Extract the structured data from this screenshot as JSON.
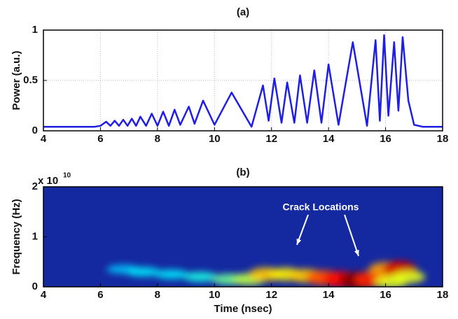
{
  "chart_data": [
    {
      "type": "line",
      "title": "(a)",
      "y_label": "Power (a.u.)",
      "xlim": [
        4,
        18
      ],
      "xticks": [
        4,
        6,
        8,
        10,
        12,
        14,
        16,
        18
      ],
      "ylim": [
        0,
        1
      ],
      "yticks": [
        0,
        0.5,
        1
      ],
      "grid": true,
      "color": "#1e1ee6",
      "x": [
        4,
        5.8,
        6.0,
        6.2,
        6.35,
        6.5,
        6.65,
        6.8,
        6.95,
        7.1,
        7.25,
        7.4,
        7.6,
        7.8,
        8.0,
        8.2,
        8.4,
        8.6,
        8.8,
        9.1,
        9.3,
        9.6,
        10.0,
        10.6,
        11.3,
        11.7,
        11.9,
        12.1,
        12.35,
        12.55,
        12.8,
        13.0,
        13.25,
        13.5,
        13.75,
        14.0,
        14.35,
        14.85,
        15.35,
        15.65,
        15.8,
        15.95,
        16.1,
        16.3,
        16.45,
        16.6,
        16.8,
        17.0,
        17.3,
        18
      ],
      "values": [
        0.04,
        0.04,
        0.05,
        0.09,
        0.05,
        0.1,
        0.05,
        0.11,
        0.05,
        0.12,
        0.05,
        0.14,
        0.05,
        0.17,
        0.05,
        0.19,
        0.05,
        0.21,
        0.06,
        0.24,
        0.07,
        0.3,
        0.06,
        0.38,
        0.04,
        0.45,
        0.1,
        0.52,
        0.08,
        0.48,
        0.08,
        0.55,
        0.08,
        0.6,
        0.08,
        0.66,
        0.06,
        0.88,
        0.05,
        0.9,
        0.1,
        0.95,
        0.15,
        0.88,
        0.2,
        0.93,
        0.3,
        0.06,
        0.04,
        0.04
      ]
    },
    {
      "type": "heatmap",
      "title": "(b)",
      "x_label": "Time (nsec)",
      "y_label": "Frequency (Hz)",
      "y_multiplier": "x 10",
      "y_multiplier_exponent": "10",
      "annotation": "Crack Locations",
      "xlim": [
        4,
        18
      ],
      "xticks": [
        4,
        6,
        8,
        10,
        12,
        14,
        16,
        18
      ],
      "ylim": [
        0,
        2
      ],
      "yticks": [
        0,
        1,
        2
      ],
      "background": "#1428a0",
      "blobs": [
        {
          "x": 6.8,
          "y": 0.35,
          "z": 0.15
        },
        {
          "x": 7.5,
          "y": 0.3,
          "z": 0.2
        },
        {
          "x": 8.5,
          "y": 0.25,
          "z": 0.2
        },
        {
          "x": 9.5,
          "y": 0.2,
          "z": 0.25
        },
        {
          "x": 10.5,
          "y": 0.15,
          "z": 0.35
        },
        {
          "x": 11.2,
          "y": 0.15,
          "z": 0.45
        },
        {
          "x": 11.8,
          "y": 0.25,
          "z": 0.6
        },
        {
          "x": 12.5,
          "y": 0.25,
          "z": 0.55
        },
        {
          "x": 13.2,
          "y": 0.22,
          "z": 0.6
        },
        {
          "x": 13.8,
          "y": 0.18,
          "z": 0.75
        },
        {
          "x": 14.4,
          "y": 0.15,
          "z": 0.85
        },
        {
          "x": 15.0,
          "y": 0.12,
          "z": 1.0
        },
        {
          "x": 15.5,
          "y": 0.15,
          "z": 0.8
        },
        {
          "x": 16.0,
          "y": 0.35,
          "z": 0.65
        },
        {
          "x": 16.5,
          "y": 0.35,
          "z": 0.9
        },
        {
          "x": 16.2,
          "y": 0.1,
          "z": 0.5
        },
        {
          "x": 16.8,
          "y": 0.2,
          "z": 0.5
        }
      ]
    }
  ]
}
